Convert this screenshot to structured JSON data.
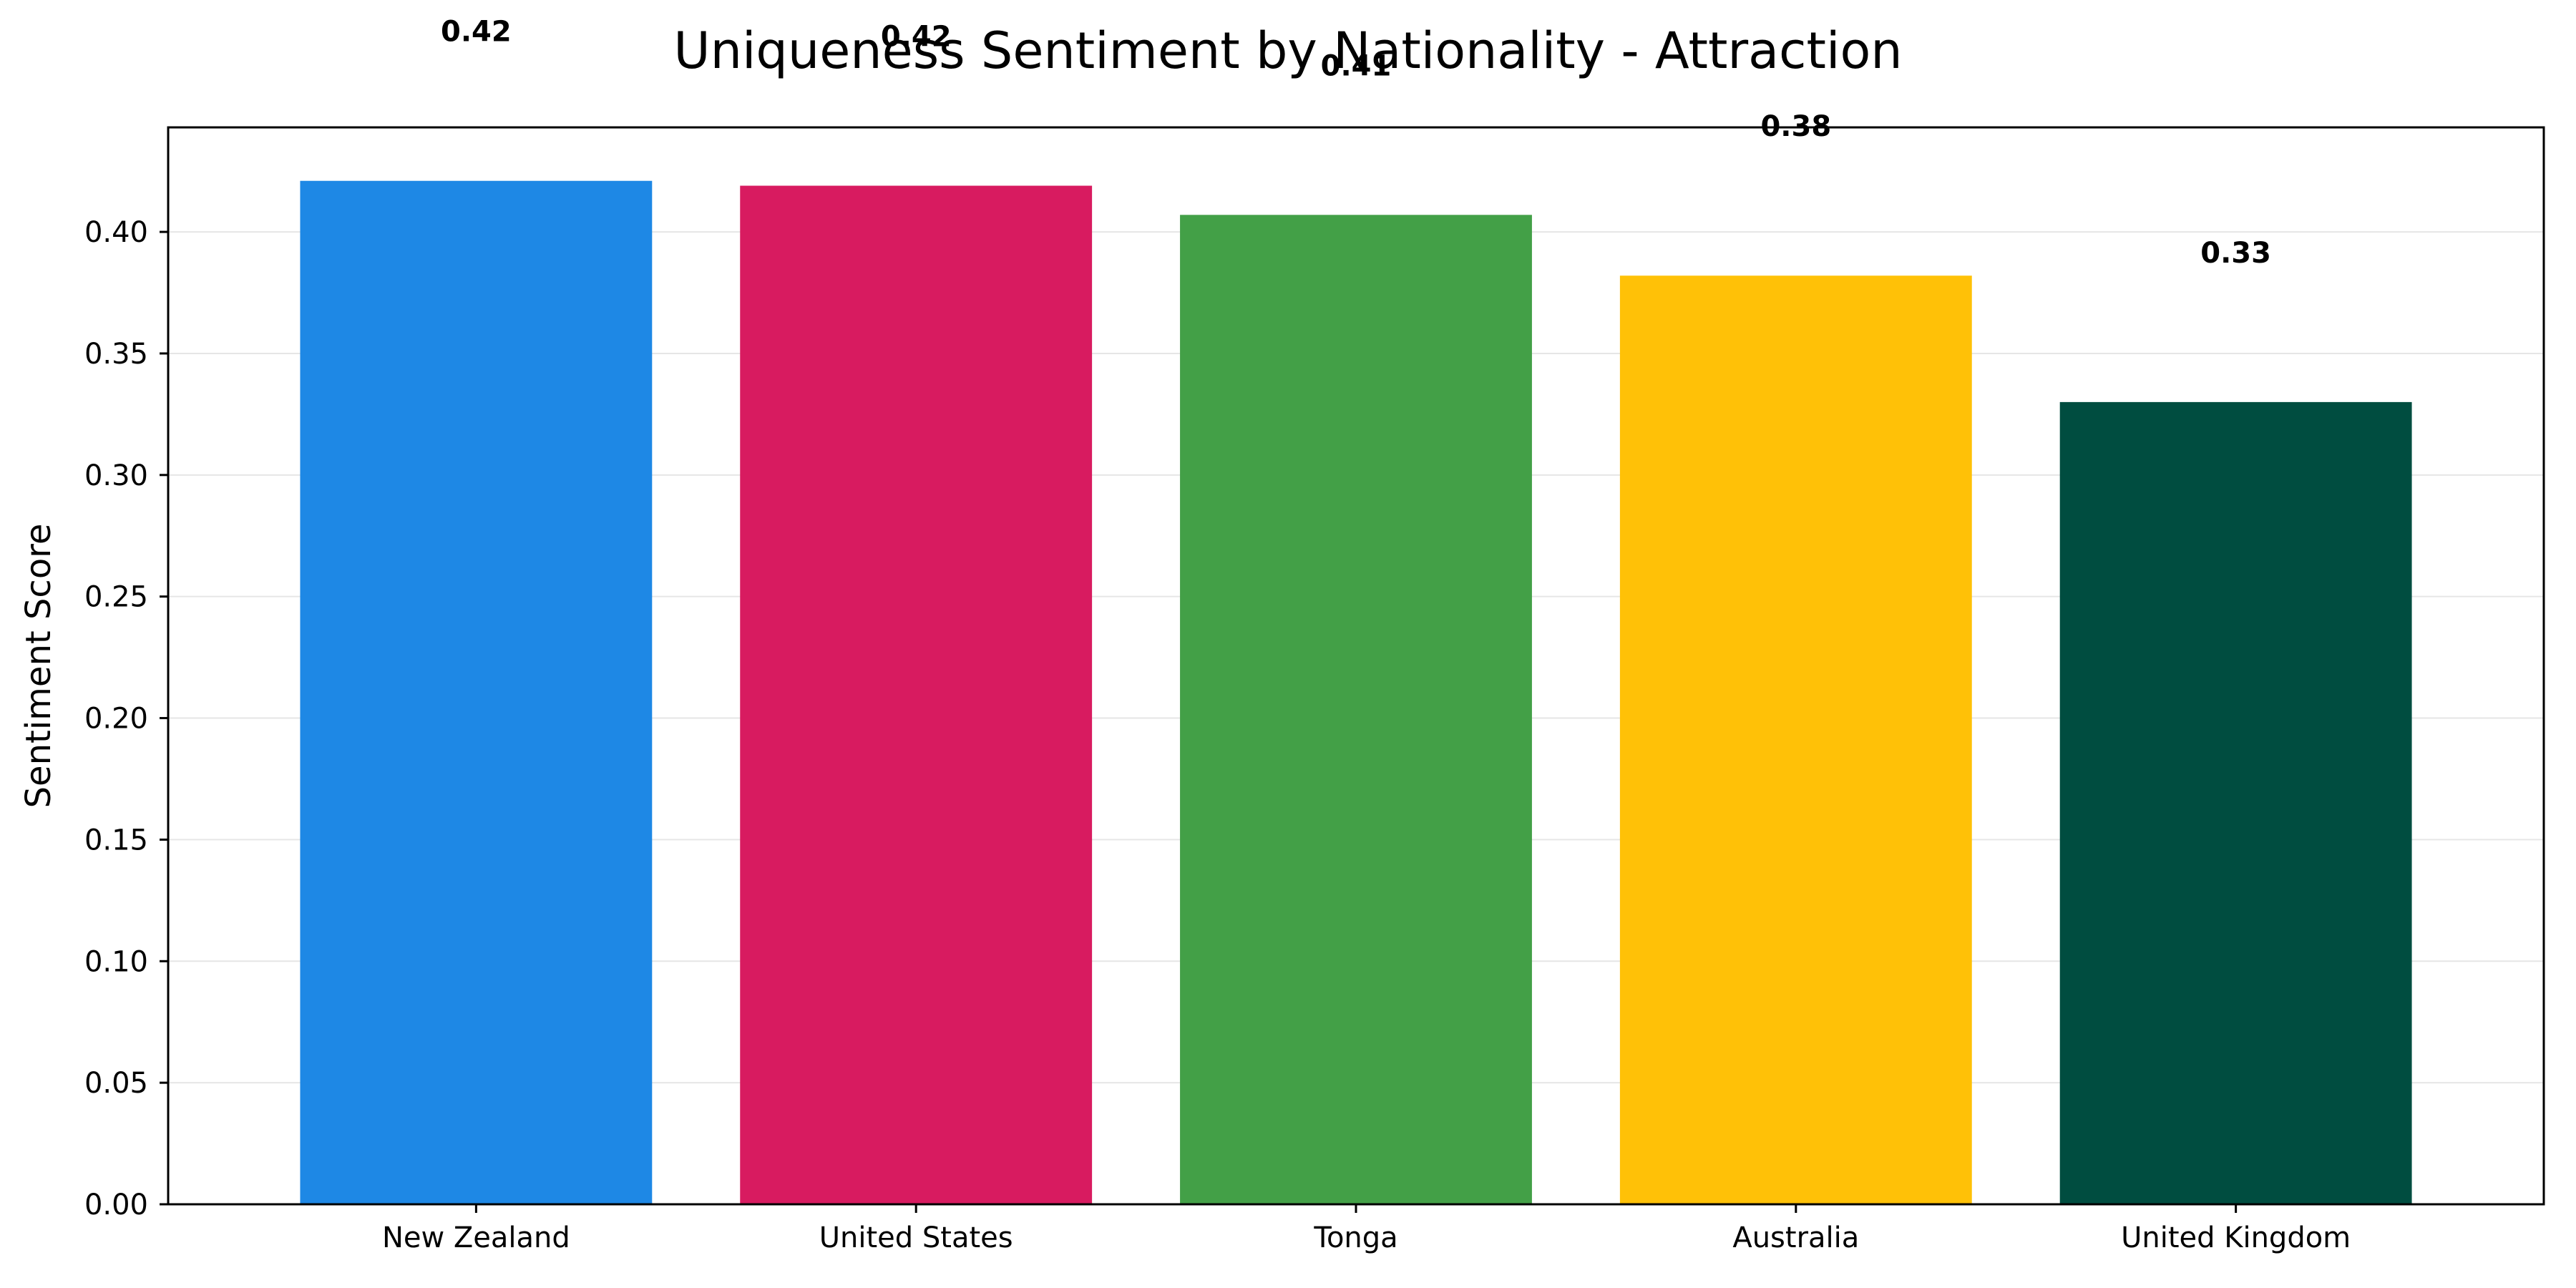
{
  "chart_data": {
    "type": "bar",
    "title": "Uniqueness Sentiment by Nationality - Attraction",
    "xlabel": "",
    "ylabel": "Sentiment Score",
    "categories": [
      "New Zealand",
      "United States",
      "Tonga",
      "Australia",
      "United Kingdom"
    ],
    "values": [
      0.421,
      0.419,
      0.407,
      0.382,
      0.33
    ],
    "value_labels": [
      "0.42",
      "0.42",
      "0.41",
      "0.38",
      "0.33"
    ],
    "colors": [
      "#1e88e5",
      "#d81b60",
      "#43a047",
      "#ffc107",
      "#004d40"
    ],
    "ylim": [
      0,
      0.443
    ],
    "yticks": [
      0.0,
      0.05,
      0.1,
      0.15,
      0.2,
      0.25,
      0.3,
      0.35,
      0.4
    ],
    "ytick_labels": [
      "0.00",
      "0.05",
      "0.10",
      "0.15",
      "0.20",
      "0.25",
      "0.30",
      "0.35",
      "0.40"
    ],
    "grid": "y-only",
    "legend": "none"
  }
}
